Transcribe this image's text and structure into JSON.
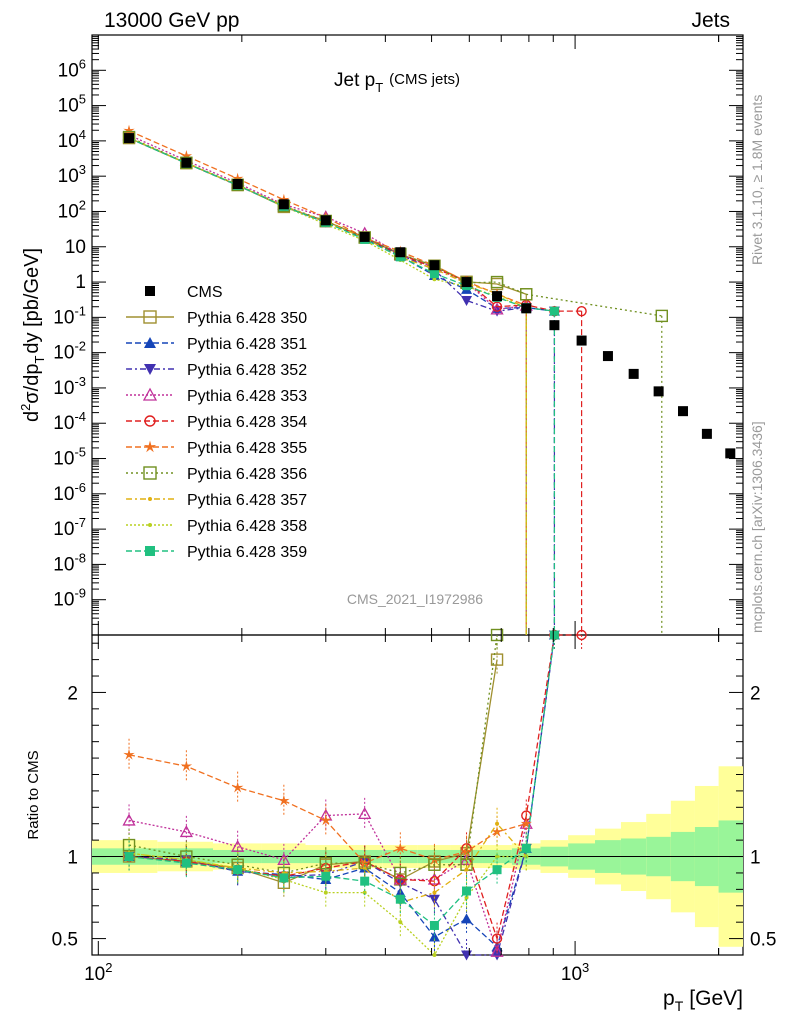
{
  "header": {
    "left": "13000 GeV pp",
    "right": "Jets"
  },
  "side": {
    "rivet": "Rivet 3.1.10, ≥ 1.8M events",
    "mcplots": "mcplots.cern.ch [arXiv:1306.3436]"
  },
  "chart_data": {
    "type": "scatter",
    "title": "Jet p_T (CMS jets)",
    "title_main": "Jet p",
    "title_sub": "T",
    "title_extra": "(CMS jets)",
    "analysis": "CMS_2021_I1972986",
    "xlabel": "p_T [GeV]",
    "xlabel_main": "p",
    "xlabel_sub": "T",
    "xlabel_unit": "[GeV]",
    "ylabel": "d²σ/dp_T dy [pb/GeV]",
    "ratio_ylabel": "Ratio to CMS",
    "xscale": "log",
    "xlim": [
      97,
      2250
    ],
    "yscale": "log",
    "ylim": [
      1e-10,
      10000000.0
    ],
    "ratio_ylim": [
      0.4,
      2.35
    ],
    "x_ticklabels": [
      {
        "v": 100,
        "e": "2"
      },
      {
        "v": 1000,
        "e": "3"
      }
    ],
    "y_ticklabels": [
      {
        "v": 1000000.0,
        "b": "10",
        "e": "6"
      },
      {
        "v": 100000.0,
        "b": "10",
        "e": "5"
      },
      {
        "v": 10000.0,
        "b": "10",
        "e": "4"
      },
      {
        "v": 1000.0,
        "b": "10",
        "e": "3"
      },
      {
        "v": 100,
        "b": "10",
        "e": "2"
      },
      {
        "v": 10,
        "b": "10",
        "e": ""
      },
      {
        "v": 1,
        "b": "1",
        "e": ""
      },
      {
        "v": 0.1,
        "b": "10",
        "e": "-1"
      },
      {
        "v": 0.01,
        "b": "10",
        "e": "-2"
      },
      {
        "v": 0.001,
        "b": "10",
        "e": "-3"
      },
      {
        "v": 0.0001,
        "b": "10",
        "e": "-4"
      },
      {
        "v": 1e-05,
        "b": "10",
        "e": "-5"
      },
      {
        "v": 1e-06,
        "b": "10",
        "e": "-6"
      },
      {
        "v": 1e-07,
        "b": "10",
        "e": "-7"
      },
      {
        "v": 1e-08,
        "b": "10",
        "e": "-8"
      },
      {
        "v": 1e-09,
        "b": "10",
        "e": "-9"
      }
    ],
    "ratio_ticklabels": [
      {
        "v": 2,
        "t": "2"
      },
      {
        "v": 1,
        "t": "1"
      },
      {
        "v": 0.5,
        "t": "0.5"
      }
    ],
    "cms": {
      "name": "CMS",
      "x": [
        116,
        153,
        196,
        245,
        300,
        362,
        430,
        507,
        592,
        686,
        790,
        905,
        1032,
        1172,
        1327,
        1497,
        1684,
        1890,
        2116
      ],
      "y": [
        12000,
        2400,
        600,
        160,
        56,
        19,
        7,
        3,
        1,
        0.4,
        0.18,
        0.06,
        0.022,
        0.008,
        0.0025,
        0.0008,
        0.00022,
        5e-05,
        1.4e-05
      ]
    },
    "band": {
      "edges": [
        97,
        133,
        174,
        220,
        272,
        330,
        395,
        468,
        548,
        638,
        737,
        846,
        967,
        1101,
        1248,
        1410,
        1588,
        1784,
        2000,
        2250
      ],
      "inner": [
        0.05,
        0.05,
        0.04,
        0.04,
        0.04,
        0.04,
        0.04,
        0.04,
        0.04,
        0.04,
        0.05,
        0.06,
        0.08,
        0.1,
        0.11,
        0.12,
        0.15,
        0.18,
        0.22
      ],
      "outer": [
        0.1,
        0.09,
        0.08,
        0.08,
        0.07,
        0.07,
        0.07,
        0.07,
        0.07,
        0.07,
        0.08,
        0.1,
        0.13,
        0.17,
        0.21,
        0.26,
        0.34,
        0.43,
        0.55
      ]
    },
    "series": [
      {
        "name": "Pythia 6.428 350",
        "color": "#a09030",
        "dash": "",
        "marker": "square-open",
        "x": [
          116,
          153,
          196,
          245,
          300,
          362,
          430,
          507,
          592,
          686,
          790
        ],
        "ratio": [
          1.0,
          0.97,
          0.93,
          0.84,
          0.95,
          0.97,
          0.86,
          0.97,
          1.02,
          2.2,
          null
        ]
      },
      {
        "name": "Pythia 6.428 351",
        "color": "#1545b8",
        "dash": "6,3",
        "marker": "triangle-up",
        "x": [
          116,
          153,
          196,
          245,
          300,
          362,
          430,
          507,
          592,
          686,
          790,
          905
        ],
        "ratio": [
          1.0,
          0.97,
          0.91,
          0.89,
          0.86,
          0.93,
          0.78,
          0.51,
          0.62,
          0.45,
          1.05,
          2.5
        ]
      },
      {
        "name": "Pythia 6.428 352",
        "color": "#4030b0",
        "dash": "6,3,2,3",
        "marker": "triangle-down",
        "x": [
          116,
          153,
          196,
          245,
          300,
          362,
          430,
          507,
          592,
          686,
          790,
          905
        ],
        "ratio": [
          1.0,
          0.98,
          0.91,
          0.88,
          0.89,
          0.97,
          0.84,
          0.74,
          0.3,
          0.3,
          1.05,
          2.5
        ]
      },
      {
        "name": "Pythia 6.428 353",
        "color": "#c0309a",
        "dash": "2,2",
        "marker": "triangle-open",
        "x": [
          116,
          153,
          196,
          245,
          300,
          362,
          430,
          507,
          592,
          686,
          790
        ],
        "ratio": [
          1.22,
          1.15,
          1.06,
          0.98,
          1.25,
          1.26,
          0.86,
          0.86,
          0.98,
          0.42,
          1.2
        ]
      },
      {
        "name": "Pythia 6.428 354",
        "color": "#e02020",
        "dash": "6,3",
        "marker": "circle-open",
        "x": [
          116,
          153,
          196,
          245,
          300,
          362,
          430,
          507,
          592,
          686,
          790,
          905,
          1032
        ],
        "ratio": [
          1.0,
          0.97,
          0.92,
          0.88,
          0.93,
          0.97,
          0.86,
          0.85,
          1.05,
          0.5,
          1.25,
          2.5,
          2.5
        ]
      },
      {
        "name": "Pythia 6.428 355",
        "color": "#f07020",
        "dash": "6,3",
        "marker": "star",
        "x": [
          116,
          153,
          196,
          245,
          300,
          362,
          430,
          507,
          592,
          686,
          790
        ],
        "ratio": [
          1.62,
          1.55,
          1.42,
          1.34,
          1.22,
          0.96,
          1.05,
          0.98,
          1.03,
          1.15,
          1.2
        ]
      },
      {
        "name": "Pythia 6.428 356",
        "color": "#709020",
        "dash": "2,3",
        "marker": "square-open",
        "x": [
          116,
          153,
          196,
          245,
          300,
          362,
          430,
          507,
          592,
          686,
          790,
          1520
        ],
        "ratio": [
          1.07,
          1.0,
          0.95,
          0.9,
          0.96,
          0.96,
          0.9,
          0.95,
          0.95,
          2.5,
          null,
          null
        ]
      },
      {
        "name": "Pythia 6.428 357",
        "color": "#e0b010",
        "dash": "6,3,2,3",
        "marker": "dot",
        "x": [
          116,
          153,
          196,
          245,
          300,
          362,
          430,
          507,
          592,
          686,
          790
        ],
        "ratio": [
          1.02,
          0.98,
          0.93,
          0.9,
          0.91,
          0.93,
          0.72,
          0.78,
          0.92,
          1.2,
          1.0
        ]
      },
      {
        "name": "Pythia 6.428 358",
        "color": "#b8d020",
        "dash": "2,2",
        "marker": "dot",
        "x": [
          116,
          153,
          196,
          245,
          300,
          362,
          430,
          507,
          592,
          686,
          790
        ],
        "ratio": [
          1.02,
          0.98,
          0.93,
          0.86,
          0.78,
          0.78,
          0.6,
          0.4,
          0.75,
          1.0,
          1.0
        ]
      },
      {
        "name": "Pythia 6.428 359",
        "color": "#20c080",
        "dash": "6,3",
        "marker": "square",
        "x": [
          116,
          153,
          196,
          245,
          300,
          362,
          430,
          507,
          592,
          686,
          790,
          905
        ],
        "ratio": [
          1.0,
          0.96,
          0.92,
          0.87,
          0.88,
          0.85,
          0.74,
          0.58,
          0.79,
          0.92,
          1.05,
          2.5
        ]
      }
    ]
  }
}
